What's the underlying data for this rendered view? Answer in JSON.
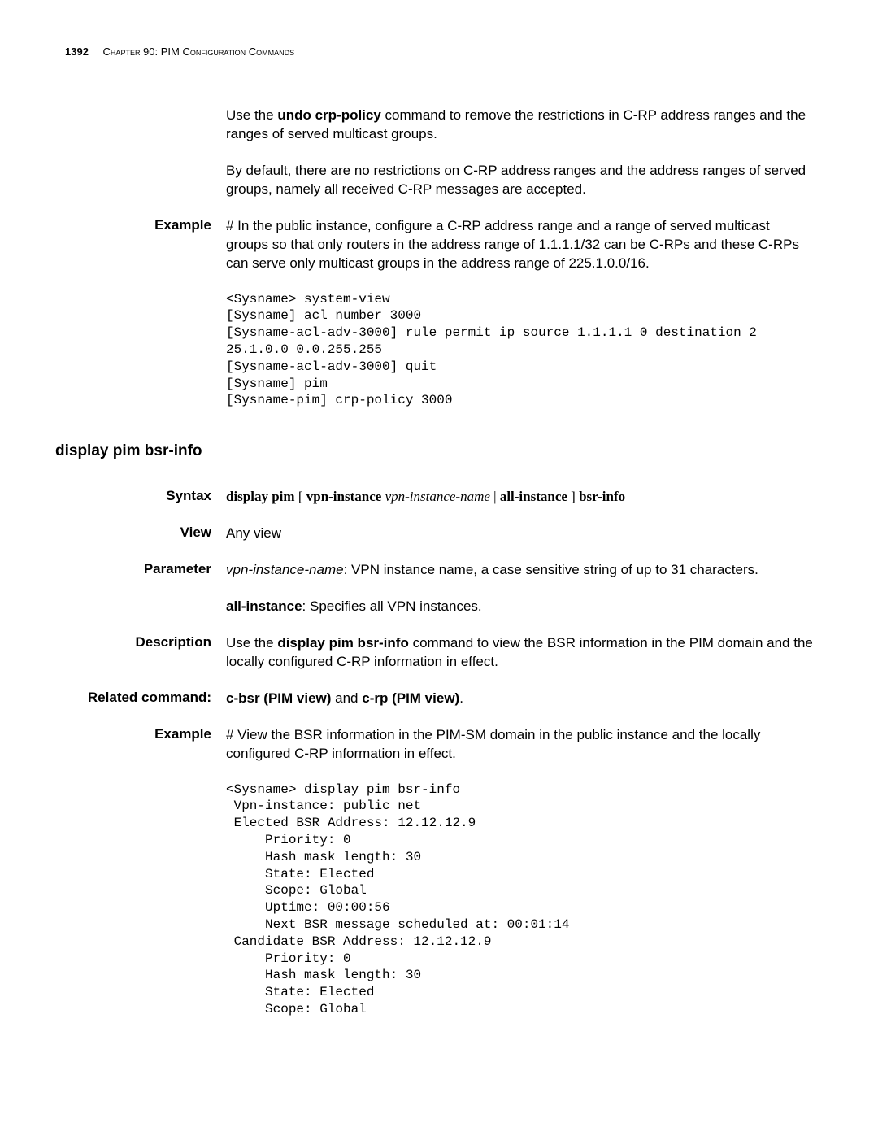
{
  "runningHead": {
    "pageNumber": "1392",
    "chapter": "Chapter 90: PIM Configuration Commands"
  },
  "intro": {
    "p1a": "Use the ",
    "p1b": "undo crp-policy",
    "p1c": " command to remove the restrictions in C-RP address ranges and the ranges of served multicast groups.",
    "p2": "By default, there are no restrictions on C-RP address ranges and the address ranges of served groups, namely all received C-RP messages are accepted."
  },
  "example1": {
    "label": "Example",
    "text": "# In the public instance, configure a C-RP address range and a range of served multicast groups so that only routers in the address range of 1.1.1.1/32 can be C-RPs and these C-RPs can serve only multicast groups in the address range of 225.1.0.0/16.",
    "code": "<Sysname> system-view\n[Sysname] acl number 3000\n[Sysname-acl-adv-3000] rule permit ip source 1.1.1.1 0 destination 2\n25.1.0.0 0.0.255.255\n[Sysname-acl-adv-3000] quit\n[Sysname] pim\n[Sysname-pim] crp-policy 3000"
  },
  "sectionTitle": "display pim bsr-info",
  "syntax": {
    "label": "Syntax",
    "t1": "display pim",
    "t2": " [ ",
    "t3": "vpn-instance",
    "t4": " ",
    "t5": "vpn-instance-name",
    "t6": " | ",
    "t7": "all-instance",
    "t8": " ] ",
    "t9": "bsr-info"
  },
  "view": {
    "label": "View",
    "text": "Any view"
  },
  "parameter": {
    "label": "Parameter",
    "p1a": "vpn-instance-name",
    "p1b": ": VPN instance name, a case sensitive string of up to 31 characters.",
    "p2a": "all-instance",
    "p2b": ": Specifies all VPN instances."
  },
  "description": {
    "label": "Description",
    "t1": "Use the ",
    "t2": "display pim bsr-info",
    "t3": " command to view the BSR information in the PIM domain and the locally configured C-RP information in effect."
  },
  "related": {
    "label": "Related command:",
    "t1": "c-bsr (PIM view)",
    "t2": " and ",
    "t3": "c-rp (PIM view)",
    "t4": "."
  },
  "example2": {
    "label": "Example",
    "text": "# View the BSR information in the PIM-SM domain in the public instance and the locally configured C-RP information in effect.",
    "code": "<Sysname> display pim bsr-info\n Vpn-instance: public net\n Elected BSR Address: 12.12.12.9\n     Priority: 0\n     Hash mask length: 30\n     State: Elected\n     Scope: Global\n     Uptime: 00:00:56\n     Next BSR message scheduled at: 00:01:14\n Candidate BSR Address: 12.12.12.9\n     Priority: 0\n     Hash mask length: 30\n     State: Elected\n     Scope: Global"
  }
}
